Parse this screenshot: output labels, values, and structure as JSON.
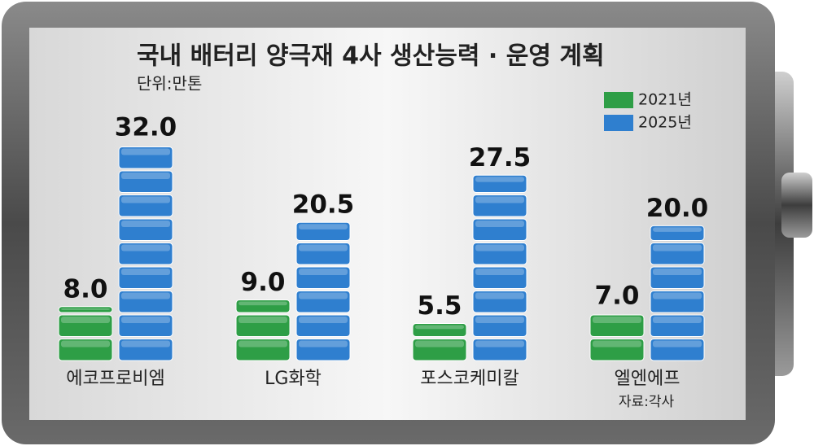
{
  "chart_data": {
    "type": "bar",
    "title": "국내 배터리 양극재 4사 생산능력 · 운영 계획",
    "subtitle": "단위:만톤",
    "source": "자료:각사",
    "categories": [
      "에코프로비엠",
      "LG화학",
      "포스코케미칼",
      "엘엔에프"
    ],
    "series": [
      {
        "name": "2021년",
        "color": "#2e9e46",
        "values": [
          8,
          9,
          5.5,
          7
        ],
        "value_labels": [
          "8.0",
          "9.0",
          "5.5",
          "7.0"
        ]
      },
      {
        "name": "2025년",
        "color": "#2f7fcf",
        "values": [
          32,
          20.5,
          27.5,
          20
        ],
        "value_labels": [
          "32.0",
          "20.5",
          "27.5",
          "20.0"
        ]
      }
    ]
  }
}
